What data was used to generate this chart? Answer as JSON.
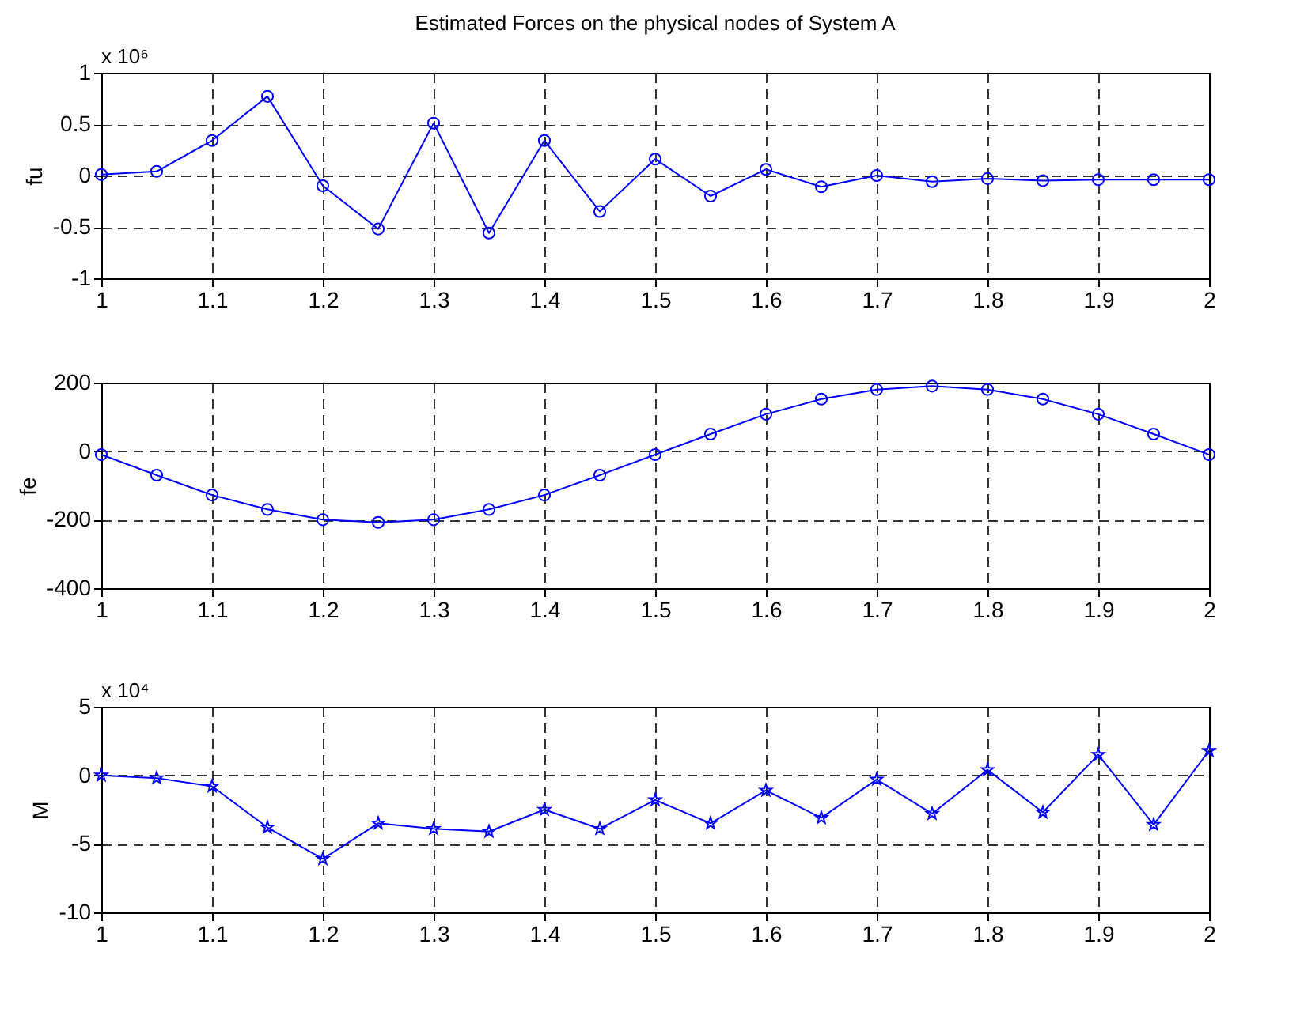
{
  "chart_data": [
    {
      "type": "line",
      "title": "Estimated Forces on the physical nodes of System A",
      "ylabel": "fu",
      "annotations": [
        "x 10⁶"
      ],
      "x": [
        1,
        1.05,
        1.1,
        1.15,
        1.2,
        1.25,
        1.3,
        1.35,
        1.4,
        1.45,
        1.5,
        1.55,
        1.6,
        1.65,
        1.7,
        1.75,
        1.8,
        1.85,
        1.9,
        1.95,
        2
      ],
      "series": [
        {
          "color": "#0000ff",
          "values": [
            0.01,
            0.04,
            0.34,
            0.77,
            -0.1,
            -0.52,
            0.51,
            -0.56,
            0.34,
            -0.35,
            0.16,
            -0.2,
            0.06,
            -0.11,
            0,
            -0.06,
            -0.03,
            -0.05,
            -0.04,
            -0.04,
            -0.04
          ]
        }
      ],
      "xlim": [
        1,
        2
      ],
      "xticks": [
        1,
        1.1,
        1.2,
        1.3,
        1.4,
        1.5,
        1.6,
        1.7,
        1.8,
        1.9,
        2
      ],
      "ylim": [
        -1,
        1
      ],
      "yticks": [
        -1,
        -0.5,
        0,
        0.5,
        1
      ],
      "grid": true,
      "marker": "circle",
      "line_style": "solid"
    },
    {
      "type": "line",
      "ylabel": "fe",
      "x": [
        1,
        1.05,
        1.1,
        1.15,
        1.2,
        1.25,
        1.3,
        1.35,
        1.4,
        1.45,
        1.5,
        1.55,
        1.6,
        1.65,
        1.7,
        1.75,
        1.8,
        1.85,
        1.9,
        1.95,
        2
      ],
      "series": [
        {
          "color": "#0000ff",
          "values": [
            -10,
            -70,
            -128,
            -170,
            -200,
            -208,
            -200,
            -170,
            -128,
            -70,
            -10,
            50,
            108,
            152,
            180,
            190,
            180,
            152,
            108,
            50,
            -10
          ]
        }
      ],
      "xlim": [
        1,
        2
      ],
      "xticks": [
        1,
        1.1,
        1.2,
        1.3,
        1.4,
        1.5,
        1.6,
        1.7,
        1.8,
        1.9,
        2
      ],
      "ylim": [
        -400,
        200
      ],
      "yticks": [
        -400,
        -200,
        0,
        200
      ],
      "grid": true,
      "marker": "circle",
      "line_style": "solid"
    },
    {
      "type": "line",
      "ylabel": "M",
      "annotations": [
        "x 10⁴"
      ],
      "x": [
        1,
        1.05,
        1.1,
        1.15,
        1.2,
        1.25,
        1.3,
        1.35,
        1.4,
        1.45,
        1.5,
        1.55,
        1.6,
        1.65,
        1.7,
        1.75,
        1.8,
        1.85,
        1.9,
        1.95,
        2
      ],
      "series": [
        {
          "color": "#0000ff",
          "values": [
            0,
            -0.2,
            -0.8,
            -3.8,
            -6.1,
            -3.5,
            -3.9,
            -4.1,
            -2.5,
            -3.9,
            -1.8,
            -3.5,
            -1.1,
            -3.1,
            -0.3,
            -2.8,
            0.4,
            -2.7,
            1.5,
            -3.6,
            1.8
          ]
        }
      ],
      "xlim": [
        1,
        2
      ],
      "xticks": [
        1,
        1.1,
        1.2,
        1.3,
        1.4,
        1.5,
        1.6,
        1.7,
        1.8,
        1.9,
        2
      ],
      "ylim": [
        -10,
        5
      ],
      "yticks": [
        -10,
        -5,
        0,
        5
      ],
      "grid": true,
      "marker": "star",
      "line_style": "solid"
    }
  ]
}
